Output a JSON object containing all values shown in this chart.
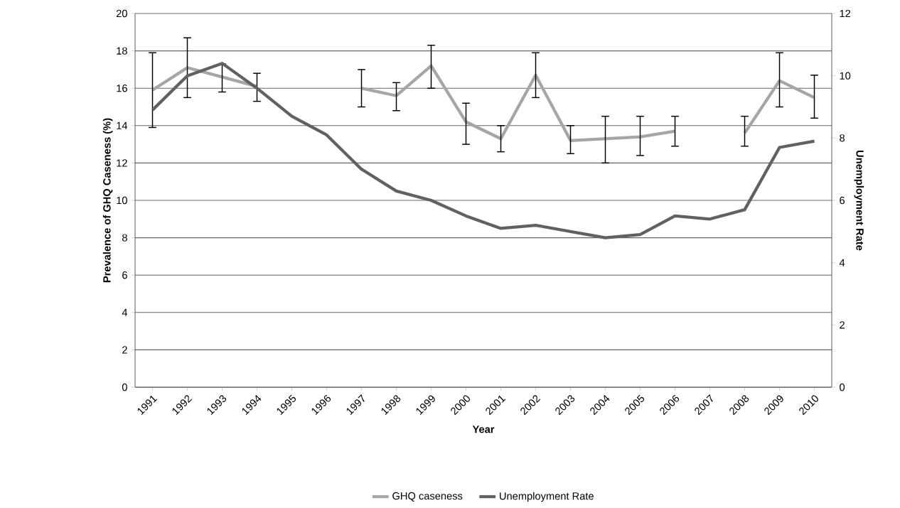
{
  "chart_data": {
    "type": "line",
    "xlabel": "Year",
    "ylabel": "Prevalence of GHQ Caseness (%)",
    "y2label": "Unemployment Rate",
    "categories": [
      "1991",
      "1992",
      "1993",
      "1994",
      "1995",
      "1996",
      "1997",
      "1998",
      "1999",
      "2000",
      "2001",
      "2002",
      "2003",
      "2004",
      "2005",
      "2006",
      "2007",
      "2008",
      "2009",
      "2010"
    ],
    "series": [
      {
        "name": "GHQ caseness",
        "color": "#a6a6a6",
        "values": [
          15.9,
          17.1,
          16.6,
          16.1,
          null,
          null,
          16.0,
          15.6,
          17.2,
          14.2,
          13.3,
          16.7,
          13.2,
          13.3,
          13.4,
          13.7,
          null,
          13.6,
          16.4,
          15.5
        ],
        "errors": [
          [
            13.9,
            17.9
          ],
          [
            15.5,
            18.7
          ],
          [
            15.8,
            17.3
          ],
          [
            15.3,
            16.8
          ],
          null,
          null,
          [
            15.0,
            17.0
          ],
          [
            14.8,
            16.3
          ],
          [
            16.0,
            18.3
          ],
          [
            13.0,
            15.2
          ],
          [
            12.6,
            14.0
          ],
          [
            15.5,
            17.9
          ],
          [
            12.5,
            14.0
          ],
          [
            12.0,
            14.5
          ],
          [
            12.4,
            14.5
          ],
          [
            12.9,
            14.5
          ],
          null,
          [
            12.9,
            14.5
          ],
          [
            15.0,
            17.9
          ],
          [
            14.4,
            16.7
          ]
        ]
      },
      {
        "name": "Unemployment Rate",
        "color": "#616161",
        "axis": "y2",
        "values": [
          8.9,
          10.0,
          10.4,
          9.6,
          8.7,
          8.1,
          7.0,
          6.3,
          6.0,
          5.5,
          5.1,
          5.2,
          5.0,
          4.8,
          4.9,
          5.5,
          5.4,
          5.7,
          7.7,
          7.9
        ]
      }
    ],
    "ylim": [
      0,
      20
    ],
    "yticks": [
      0,
      2,
      4,
      6,
      8,
      10,
      12,
      14,
      16,
      18,
      20
    ],
    "y2lim": [
      0,
      12
    ],
    "y2ticks": [
      0,
      2,
      4,
      6,
      8,
      10,
      12
    ],
    "grid": "y",
    "legend": "bottom",
    "marker": "none",
    "line_style": "solid"
  }
}
